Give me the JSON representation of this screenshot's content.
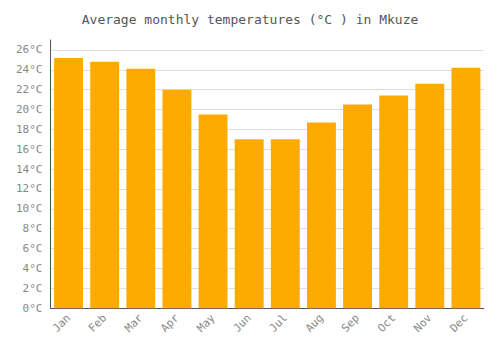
{
  "chart_data": {
    "type": "bar",
    "title": "Average monthly temperatures (°C ) in Mkuze",
    "categories": [
      "Jan",
      "Feb",
      "Mar",
      "Apr",
      "May",
      "Jun",
      "Jul",
      "Aug",
      "Sep",
      "Oct",
      "Nov",
      "Dec"
    ],
    "values": [
      25.2,
      24.8,
      24.1,
      22.0,
      19.5,
      17.0,
      17.0,
      18.7,
      20.5,
      21.4,
      22.6,
      24.2
    ],
    "color": "#FFAA00",
    "ylim": [
      0,
      27
    ],
    "yticks": [
      {
        "value": 0,
        "label": "0°C"
      },
      {
        "value": 2,
        "label": "2°C"
      },
      {
        "value": 4,
        "label": "4°C"
      },
      {
        "value": 6,
        "label": "6°C"
      },
      {
        "value": 8,
        "label": "8°C"
      },
      {
        "value": 10,
        "label": "10°C"
      },
      {
        "value": 12,
        "label": "12°C"
      },
      {
        "value": 14,
        "label": "14°C"
      },
      {
        "value": 16,
        "label": "16°C"
      },
      {
        "value": 18,
        "label": "18°C"
      },
      {
        "value": 20,
        "label": "20°C"
      },
      {
        "value": 22,
        "label": "22°C"
      },
      {
        "value": 24,
        "label": "24°C"
      },
      {
        "value": 26,
        "label": "26°C"
      }
    ],
    "grid": true
  }
}
